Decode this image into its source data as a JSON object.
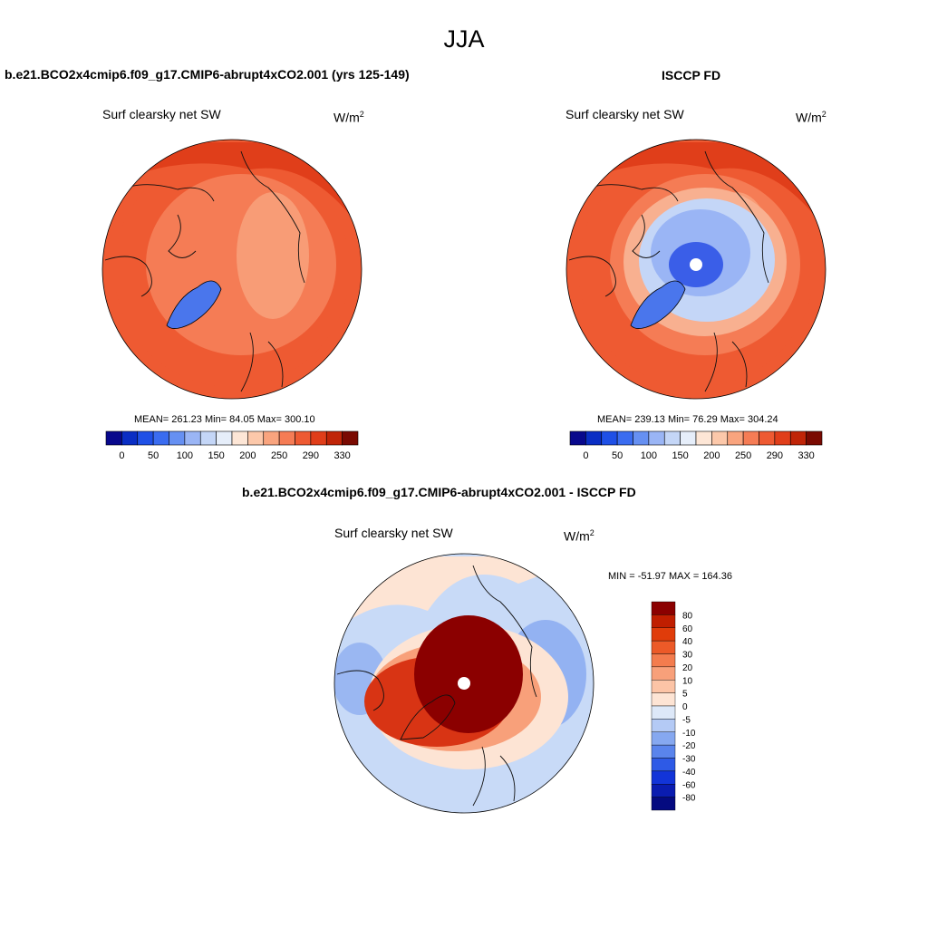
{
  "season": "JJA",
  "panels": [
    {
      "title": "b.e21.BCO2x4cmip6.f09_g17.CMIP6-abrupt4xCO2.001 (yrs 125-149)",
      "subtitle": "Surf clearsky net SW",
      "units": "W/m",
      "units_sup": "2",
      "stats": "MEAN= 261.23  Min=  84.05  Max= 300.10"
    },
    {
      "title": "ISCCP FD",
      "subtitle": "Surf clearsky net SW",
      "units": "W/m",
      "units_sup": "2",
      "stats": "MEAN= 239.13  Min=  76.29  Max= 304.24"
    },
    {
      "title": "b.e21.BCO2x4cmip6.f09_g17.CMIP6-abrupt4xCO2.001 - ISCCP FD",
      "subtitle": "Surf clearsky net SW",
      "units": "W/m",
      "units_sup": "2",
      "stats": "MIN = -51.97 MAX = 164.36"
    }
  ],
  "abs_colorbar": {
    "colors": [
      "#08088c",
      "#0a2ec4",
      "#1f50e6",
      "#3a6cf0",
      "#6690f2",
      "#9ab5f5",
      "#c4d6f7",
      "#e6eefa",
      "#fde6d6",
      "#fcc8aa",
      "#f9a47e",
      "#f57c55",
      "#ee5a32",
      "#e03e1a",
      "#c02508",
      "#7a0a02"
    ],
    "tick_labels": [
      "0",
      "50",
      "100",
      "150",
      "200",
      "250",
      "290",
      "330"
    ]
  },
  "diff_colorbar": {
    "colors": [
      "#8b0000",
      "#c01e00",
      "#e03c0a",
      "#ec5a28",
      "#f37c4e",
      "#f8a07a",
      "#fcc4a6",
      "#fde4d4",
      "#dde8f8",
      "#b4caf5",
      "#86a8f0",
      "#5a84ec",
      "#2e5ae6",
      "#1234d8",
      "#0a1cb0",
      "#040a80"
    ],
    "tick_labels": [
      "80",
      "60",
      "40",
      "30",
      "20",
      "10",
      "5",
      "0",
      "-5",
      "-10",
      "-20",
      "-30",
      "-40",
      "-60",
      "-80"
    ]
  },
  "map_colors": {
    "red_bg": "#ee5a32",
    "orange_mid": "#f57c55",
    "dark_red": "#e03e1a",
    "salmon": "#f9a47e",
    "blue_ice": "#4a76ec",
    "light_blue": "#c4d6f7",
    "mid_blue": "#9ab5f5",
    "deep_blue": "#3a5ee8",
    "diff_dark": "#8b0000",
    "diff_red": "#d83414",
    "diff_pale": "#fde4d4",
    "diff_lightblue": "#c8daf7",
    "diff_blue": "#86a8f0"
  }
}
